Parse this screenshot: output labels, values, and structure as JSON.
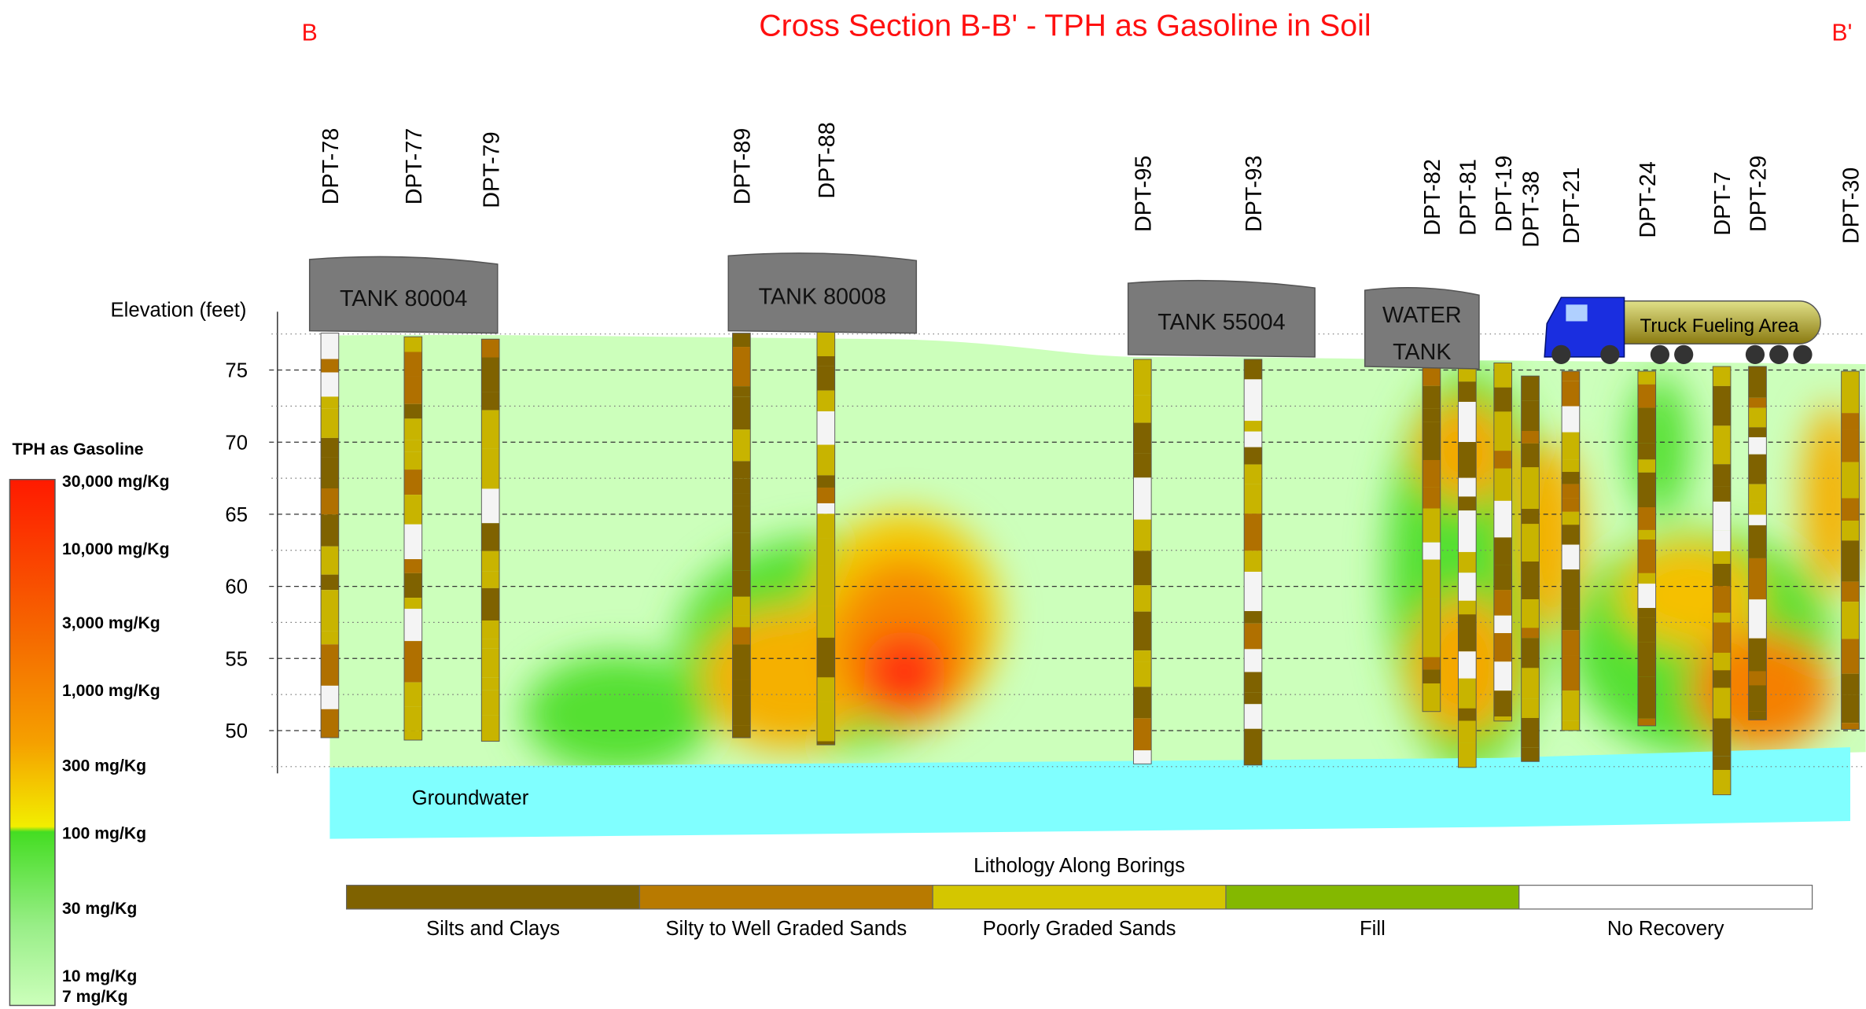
{
  "title": "Cross Section B-B' - TPH as Gasoline in Soil",
  "end_labels": [
    "B",
    "B'"
  ],
  "borings": [
    "DPT-78",
    "DPT-77",
    "DPT-79",
    "DPT-89",
    "DPT-88",
    "DPT-95",
    "DPT-93",
    "DPT-82",
    "DPT-81",
    "DPT-19",
    "DPT-38",
    "DPT-21",
    "DPT-24",
    "DPT-7",
    "DPT-29",
    "DPT-30"
  ],
  "tanks": [
    {
      "lines": [
        "TANK 80004"
      ]
    },
    {
      "lines": [
        "TANK 80008"
      ]
    },
    {
      "lines": [
        "TANK 55004"
      ]
    },
    {
      "lines": [
        "WATER",
        "TANK"
      ]
    }
  ],
  "truck_label": "Truck Fueling Area",
  "elevation_axis": {
    "label": "Elevation (feet)",
    "ticks": [
      75,
      70,
      65,
      60,
      55,
      50
    ]
  },
  "groundwater_label": "Groundwater",
  "tph_legend": {
    "title": "TPH as Gasoline",
    "labels": [
      "30,000 mg/Kg",
      "10,000 mg/Kg",
      "3,000 mg/Kg",
      "1,000 mg/Kg",
      "300 mg/Kg",
      "100 mg/Kg",
      "30 mg/Kg",
      "10 mg/Kg",
      "7 mg/Kg"
    ]
  },
  "lithology_legend": {
    "title": "Lithology Along Borings",
    "items": [
      {
        "name": "Silts and Clays",
        "color": "#7f6200"
      },
      {
        "name": "Silty to Well Graded Sands",
        "color": "#b87a00"
      },
      {
        "name": "Poorly Graded Sands",
        "color": "#d4c600"
      },
      {
        "name": "Fill",
        "color": "#84b800"
      },
      {
        "name": "No Recovery",
        "color": "#ffffff"
      }
    ]
  }
}
